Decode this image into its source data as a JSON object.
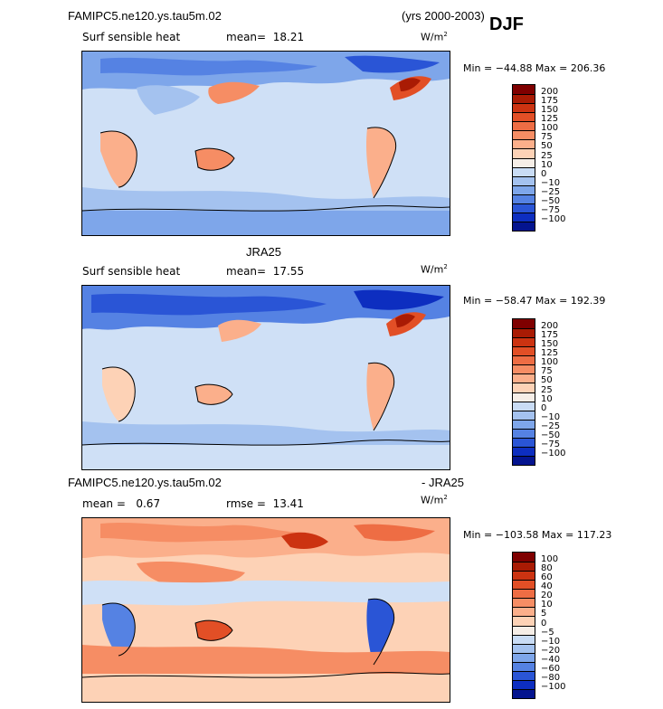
{
  "figure": {
    "season": "DJF",
    "years": "(yrs 2000-2003)"
  },
  "colors": {
    "ocean_base": "#cfe0f6",
    "land_outline": "#000000"
  },
  "chart_data": [
    {
      "type": "heatmap",
      "title": "FAMIPC5.ne120.ys.tau5m.02",
      "variable": "Surf sensible heat",
      "units": "W/m",
      "units_exp": "2",
      "mean_label": "mean=",
      "mean": "18.21",
      "min_max": "Min = −44.88 Max = 206.36",
      "min": -44.88,
      "max": 206.36,
      "colorbar": {
        "levels": [
          "200",
          "175",
          "150",
          "125",
          "100",
          "75",
          "50",
          "25",
          "10",
          "0",
          "−10",
          "−25",
          "−50",
          "−75",
          "−100"
        ],
        "colors": [
          "#7f0000",
          "#a91b04",
          "#cc3311",
          "#e24f26",
          "#ee6d44",
          "#f68d64",
          "#fbaf8b",
          "#fdd2b6",
          "#f6eee7",
          "#c9dcf5",
          "#a4c2ef",
          "#7ea6ea",
          "#5582e3",
          "#2a55d6",
          "#0d2ec0",
          "#04148f"
        ]
      }
    },
    {
      "type": "heatmap",
      "title": "JRA25",
      "variable": "Surf sensible heat",
      "units": "W/m",
      "units_exp": "2",
      "mean_label": "mean=",
      "mean": "17.55",
      "min_max": "Min = −58.47 Max = 192.39",
      "min": -58.47,
      "max": 192.39,
      "colorbar": {
        "levels": [
          "200",
          "175",
          "150",
          "125",
          "100",
          "75",
          "50",
          "25",
          "10",
          "0",
          "−10",
          "−25",
          "−50",
          "−75",
          "−100"
        ],
        "colors": [
          "#7f0000",
          "#a91b04",
          "#cc3311",
          "#e24f26",
          "#ee6d44",
          "#f68d64",
          "#fbaf8b",
          "#fdd2b6",
          "#f6eee7",
          "#c9dcf5",
          "#a4c2ef",
          "#7ea6ea",
          "#5582e3",
          "#2a55d6",
          "#0d2ec0",
          "#04148f"
        ]
      }
    },
    {
      "type": "heatmap",
      "title_left": "FAMIPC5.ne120.ys.tau5m.02",
      "title_right": "- JRA25",
      "units": "W/m",
      "units_exp": "2",
      "mean_label": "mean =",
      "mean": "0.67",
      "rmse_label": "rmse =",
      "rmse": "13.41",
      "min_max": "Min = −103.58 Max = 117.23",
      "min": -103.58,
      "max": 117.23,
      "colorbar": {
        "levels": [
          "100",
          "80",
          "60",
          "40",
          "20",
          "10",
          "5",
          "0",
          "−5",
          "−10",
          "−20",
          "−40",
          "−60",
          "−80",
          "−100"
        ],
        "colors": [
          "#7f0000",
          "#a91b04",
          "#cc3311",
          "#e24f26",
          "#ee6d44",
          "#f68d64",
          "#fbaf8b",
          "#fdd2b6",
          "#f6eee7",
          "#c9dcf5",
          "#a4c2ef",
          "#7ea6ea",
          "#5582e3",
          "#2a55d6",
          "#0d2ec0",
          "#04148f"
        ]
      }
    }
  ]
}
